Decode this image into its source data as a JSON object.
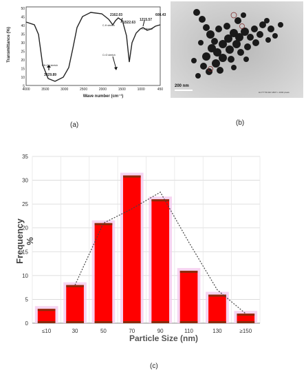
{
  "panel_a": {
    "label": "(a)",
    "ylabel": "Transmittance (%)",
    "xlabel": "Wave number (cm⁻¹)",
    "y_ticks": [
      "50",
      "45",
      "40",
      "35",
      "30",
      "25",
      "20",
      "15",
      "10",
      "5"
    ],
    "x_ticks": [
      "4000",
      "3500",
      "3000",
      "2500",
      "2000",
      "1500",
      "1000",
      "450"
    ],
    "peaks": [
      "3329.89",
      "2162.03",
      "1522.63",
      "1215.57",
      "608.43"
    ],
    "annotations": [
      "OH-OH stretch",
      "C-H stretch",
      "C=O stretch",
      "c-s stretch"
    ]
  },
  "panel_b": {
    "label": "(b)",
    "scale_bar": "200 nm",
    "caption": "Hv=??  50.0kV  2827 x 1000 pixels"
  },
  "panel_c": {
    "label": "(c)"
  },
  "chart_data": {
    "type": "bar",
    "categories": [
      "≤10",
      "30",
      "50",
      "70",
      "90",
      "110",
      "130",
      "≥150"
    ],
    "values": [
      3,
      8,
      21,
      31,
      26,
      11,
      6,
      2
    ],
    "trend": [
      null,
      8,
      21,
      24,
      27.5,
      17,
      7,
      2
    ],
    "xlabel": "Particle Size (nm)",
    "ylabel": "Frequency %",
    "ylim": [
      0,
      35
    ],
    "y_ticks": [
      "0",
      "5",
      "10",
      "15",
      "20",
      "25",
      "30",
      "35"
    ],
    "grid": true,
    "colors": {
      "bar": "#ff0000",
      "bar_cap": "#8b2a0a",
      "halo": "#f4c9ee",
      "trend": "#444444"
    }
  }
}
